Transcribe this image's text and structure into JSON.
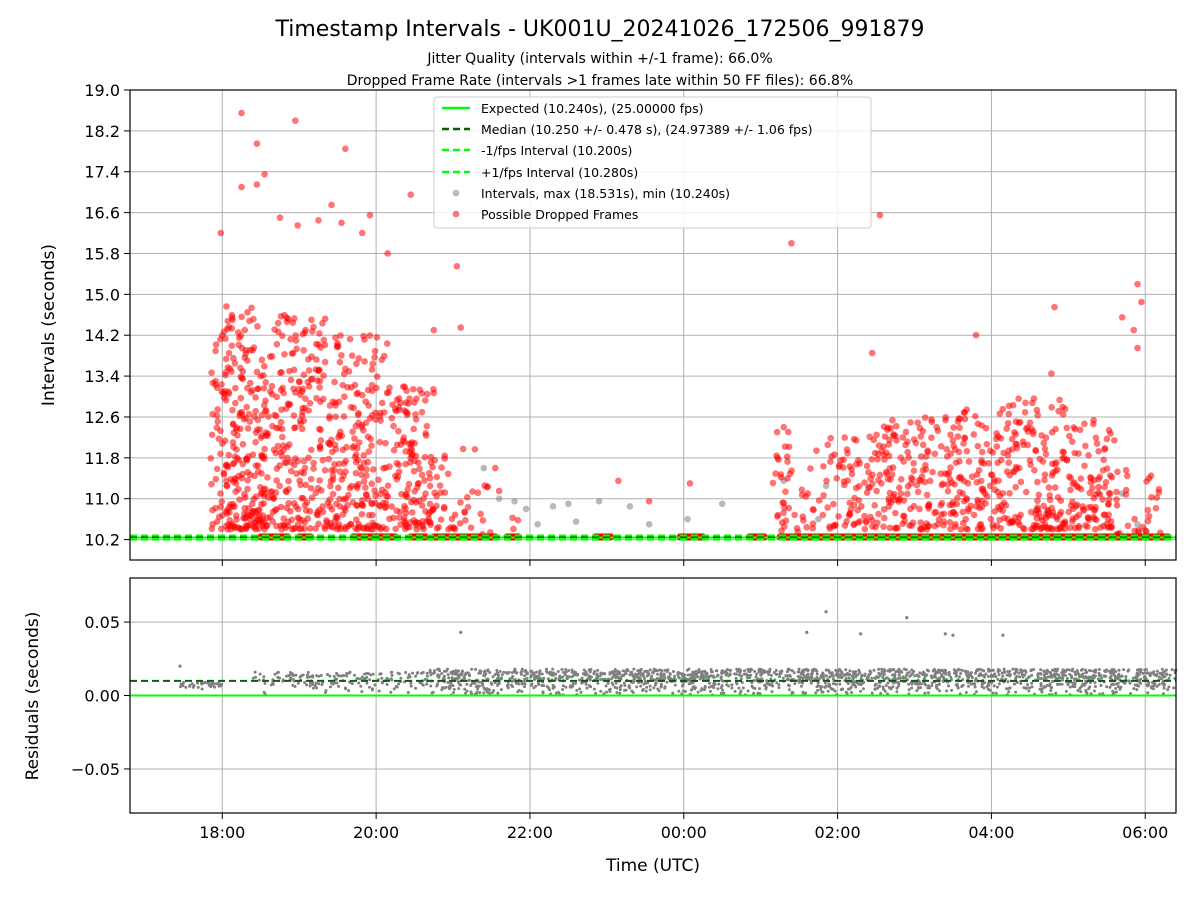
{
  "chart_data": [
    {
      "type": "scatter",
      "title": "Timestamp Intervals - UK001U_20241026_172506_991879",
      "subtitle_lines": [
        "Jitter Quality (intervals within +/-1 frame): 66.0%",
        "Dropped Frame Rate (intervals >1 frames late within 50 FF files): 66.8%"
      ],
      "ylabel": "Intervals (seconds)",
      "xlabel": "Time (UTC)",
      "x_hours_range": [
        16.8,
        30.4
      ],
      "ylim": [
        9.8,
        19.0
      ],
      "yticks": [
        "10.2",
        "11.0",
        "11.8",
        "12.6",
        "13.4",
        "14.2",
        "15.0",
        "15.8",
        "16.6",
        "17.4",
        "18.2",
        "19.0"
      ],
      "xticks": [
        "18:00",
        "20:00",
        "22:00",
        "00:00",
        "02:00",
        "04:00",
        "06:00"
      ],
      "grid": true,
      "legend_position": "top-center",
      "reference_lines": [
        {
          "name": "Expected (10.240s), (25.00000 fps)",
          "y": 10.24,
          "style": "solid",
          "color": "#00ff00"
        },
        {
          "name": "Median (10.250 +/- 0.478 s), (24.97389 +/- 1.06 fps)",
          "y": 10.25,
          "style": "dashed",
          "color": "#006400"
        },
        {
          "name": "-1/fps Interval (10.200s)",
          "y": 10.2,
          "style": "dashed",
          "color": "#00ff00"
        },
        {
          "name": "+1/fps Interval (10.280s)",
          "y": 10.28,
          "style": "dashed",
          "color": "#00ff00"
        }
      ],
      "series": [
        {
          "name": "Intervals, max (18.531s), min (10.240s)",
          "color": "#808080",
          "points_hours_value": [
            [
              21.4,
              11.6
            ],
            [
              21.6,
              11.0
            ],
            [
              21.8,
              10.95
            ],
            [
              21.95,
              10.8
            ],
            [
              22.1,
              10.5
            ],
            [
              22.3,
              10.85
            ],
            [
              22.5,
              10.9
            ],
            [
              22.6,
              10.55
            ],
            [
              22.9,
              10.95
            ],
            [
              23.3,
              10.85
            ],
            [
              23.55,
              10.5
            ],
            [
              24.05,
              10.6
            ],
            [
              24.5,
              10.9
            ],
            [
              25.3,
              11.35
            ],
            [
              25.75,
              10.6
            ],
            [
              25.85,
              11.25
            ],
            [
              29.7,
              11.1
            ],
            [
              29.9,
              10.5
            ]
          ]
        },
        {
          "name": "Possible Dropped Frames",
          "color": "#ff0000",
          "clusters_hours_value": [
            {
              "x": [
                17.85,
                18.55
              ],
              "y": [
                10.4,
                14.8
              ],
              "n": 260
            },
            {
              "x": [
                18.55,
                19.35
              ],
              "y": [
                10.4,
                14.6
              ],
              "n": 230
            },
            {
              "x": [
                19.35,
                20.15
              ],
              "y": [
                10.4,
                14.2
              ],
              "n": 220
            },
            {
              "x": [
                20.15,
                20.75
              ],
              "y": [
                10.4,
                13.2
              ],
              "n": 140
            },
            {
              "x": [
                20.75,
                21.3
              ],
              "y": [
                10.4,
                12.0
              ],
              "n": 35
            },
            {
              "x": [
                21.3,
                21.9
              ],
              "y": [
                10.3,
                11.3
              ],
              "n": 12
            },
            {
              "x": [
                25.15,
                25.8
              ],
              "y": [
                10.3,
                12.4
              ],
              "n": 45
            },
            {
              "x": [
                25.8,
                26.6
              ],
              "y": [
                10.4,
                12.3
              ],
              "n": 90
            },
            {
              "x": [
                26.6,
                27.4
              ],
              "y": [
                10.4,
                12.6
              ],
              "n": 130
            },
            {
              "x": [
                27.4,
                28.2
              ],
              "y": [
                10.4,
                12.8
              ],
              "n": 140
            },
            {
              "x": [
                28.2,
                29.0
              ],
              "y": [
                10.4,
                13.0
              ],
              "n": 150
            },
            {
              "x": [
                29.0,
                29.6
              ],
              "y": [
                10.4,
                12.6
              ],
              "n": 100
            },
            {
              "x": [
                29.6,
                30.2
              ],
              "y": [
                10.3,
                11.6
              ],
              "n": 30
            }
          ],
          "outliers_hours_value": [
            [
              18.25,
              18.55
            ],
            [
              18.95,
              18.4
            ],
            [
              18.45,
              17.95
            ],
            [
              18.25,
              17.1
            ],
            [
              18.45,
              17.15
            ],
            [
              18.55,
              17.35
            ],
            [
              19.6,
              17.85
            ],
            [
              19.42,
              16.75
            ],
            [
              20.45,
              16.95
            ],
            [
              19.92,
              16.55
            ],
            [
              19.55,
              16.4
            ],
            [
              19.25,
              16.45
            ],
            [
              18.75,
              16.5
            ],
            [
              18.98,
              16.35
            ],
            [
              17.98,
              16.2
            ],
            [
              19.82,
              16.2
            ],
            [
              20.15,
              15.8
            ],
            [
              21.05,
              15.55
            ],
            [
              26.55,
              16.55
            ],
            [
              25.4,
              16.0
            ],
            [
              29.9,
              15.2
            ],
            [
              29.95,
              14.85
            ],
            [
              29.7,
              14.55
            ],
            [
              29.85,
              14.3
            ],
            [
              29.9,
              13.95
            ],
            [
              28.82,
              14.75
            ],
            [
              27.8,
              14.2
            ],
            [
              26.45,
              13.85
            ],
            [
              28.78,
              13.45
            ],
            [
              25.3,
              12.4
            ],
            [
              21.1,
              14.35
            ],
            [
              20.75,
              14.3
            ],
            [
              24.08,
              11.3
            ],
            [
              23.15,
              11.35
            ],
            [
              23.55,
              10.95
            ],
            [
              21.55,
              11.6
            ],
            [
              30.05,
              11.4
            ]
          ],
          "baseline_hours_value": [
            {
              "x": [
                18.5,
                18.85
              ],
              "y": 10.25
            },
            {
              "x": [
                19.0,
                19.15
              ],
              "y": 10.25
            },
            {
              "x": [
                19.7,
                20.25
              ],
              "y": 10.25
            },
            {
              "x": [
                20.45,
                20.65
              ],
              "y": 10.25
            },
            {
              "x": [
                20.75,
                21.55
              ],
              "y": 10.25
            },
            {
              "x": [
                21.7,
                21.85
              ],
              "y": 10.25
            },
            {
              "x": [
                22.85,
                23.05
              ],
              "y": 10.25
            },
            {
              "x": [
                23.95,
                24.25
              ],
              "y": 10.25
            },
            {
              "x": [
                24.85,
                25.05
              ],
              "y": 10.25
            },
            {
              "x": [
                25.25,
                30.3
              ],
              "y": 10.25
            }
          ]
        }
      ]
    },
    {
      "type": "scatter",
      "ylabel": "Residuals (seconds)",
      "xlabel": "Time (UTC)",
      "x_hours_range": [
        16.8,
        30.4
      ],
      "ylim": [
        -0.08,
        0.08
      ],
      "yticks": [
        "−0.05",
        "0.00",
        "0.05"
      ],
      "ytick_values": [
        -0.05,
        0.0,
        0.05
      ],
      "xticks": [
        "18:00",
        "20:00",
        "22:00",
        "00:00",
        "02:00",
        "04:00",
        "06:00"
      ],
      "grid": true,
      "reference_lines": [
        {
          "name": "Expected",
          "y": 0.0,
          "style": "solid",
          "color": "#00ff00"
        },
        {
          "name": "Median",
          "y": 0.01,
          "style": "dashed",
          "color": "#006400"
        }
      ],
      "series": [
        {
          "name": "Residuals",
          "color": "#808080",
          "bands_hours_value": [
            {
              "x": [
                17.45,
                18.0
              ],
              "y": [
                0.004,
                0.009
              ],
              "n": 40
            },
            {
              "x": [
                18.4,
                19.5
              ],
              "y": [
                0.0,
                0.016
              ],
              "n": 80
            },
            {
              "x": [
                19.5,
                20.7
              ],
              "y": [
                0.0,
                0.016
              ],
              "n": 90
            },
            {
              "x": [
                20.7,
                30.4
              ],
              "y": [
                0.0,
                0.018
              ],
              "n": 1800
            }
          ],
          "outliers_hours_value": [
            [
              17.45,
              0.02
            ],
            [
              21.1,
              0.043
            ],
            [
              25.6,
              0.043
            ],
            [
              25.85,
              0.057
            ],
            [
              26.3,
              0.042
            ],
            [
              26.9,
              0.053
            ],
            [
              27.4,
              0.042
            ],
            [
              27.5,
              0.041
            ],
            [
              28.15,
              0.041
            ]
          ]
        }
      ]
    }
  ]
}
